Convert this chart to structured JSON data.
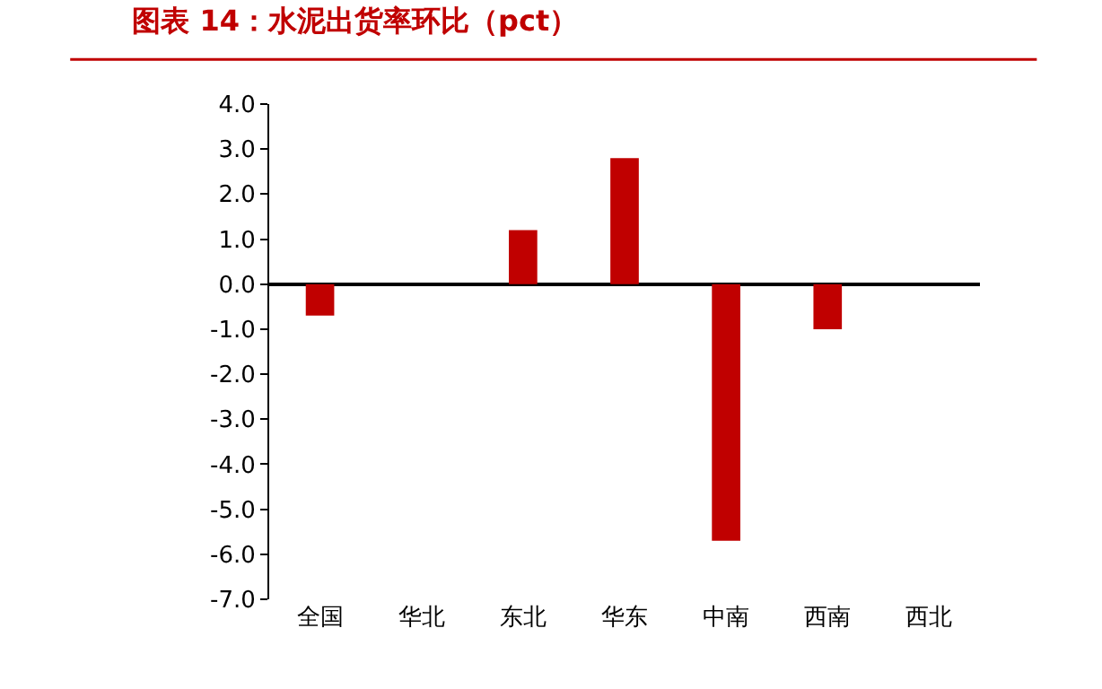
{
  "chart_data": {
    "type": "bar",
    "title": "图表 14：水泥出货率环比（pct）",
    "categories": [
      "全国",
      "华北",
      "东北",
      "华东",
      "中南",
      "西南",
      "西北"
    ],
    "series": [
      {
        "color": "#c00000",
        "values": [
          -0.7,
          null,
          1.2,
          2.8,
          -5.7,
          -1.0,
          null
        ]
      }
    ],
    "ylim": [
      -7,
      4
    ],
    "yticks": [
      {
        "value": 4,
        "label": "4.0"
      },
      {
        "value": 3,
        "label": "3.0"
      },
      {
        "value": 2,
        "label": "2.0"
      },
      {
        "value": 1,
        "label": "1.0"
      },
      {
        "value": 0,
        "label": "0.0"
      },
      {
        "value": -1,
        "label": "-1.0"
      },
      {
        "value": -2,
        "label": "-2.0"
      },
      {
        "value": -3,
        "label": "-3.0"
      },
      {
        "value": -4,
        "label": "-4.0"
      },
      {
        "value": -5,
        "label": "-5.0"
      },
      {
        "value": -6,
        "label": "-6.0"
      },
      {
        "value": -7,
        "label": "-7.0"
      }
    ],
    "tick_labels": "xy"
  }
}
